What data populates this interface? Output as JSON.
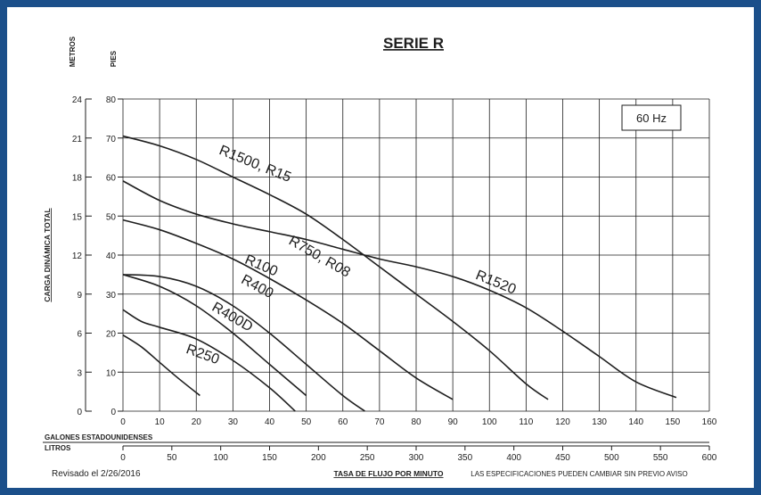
{
  "chart_data": {
    "type": "line",
    "title": "SERIE R",
    "frequency_badge": "60 Hz",
    "xlabel": "TASA DE FLUJO POR MINUTO",
    "ylabel": "CARGA DINÁMICA TOTAL",
    "x_axis_gallons": {
      "label": "GALONES ESTADOUNIDENSES",
      "range": [
        0,
        160
      ],
      "ticks": [
        0,
        10,
        20,
        30,
        40,
        50,
        60,
        70,
        80,
        90,
        100,
        110,
        120,
        130,
        140,
        150,
        160
      ]
    },
    "x_axis_liters": {
      "label": "LITROS",
      "range": [
        0,
        600
      ],
      "ticks": [
        0,
        50,
        100,
        150,
        200,
        250,
        300,
        350,
        400,
        450,
        500,
        550,
        600
      ]
    },
    "y_axis_feet": {
      "label": "PIES",
      "range": [
        0,
        80
      ],
      "ticks": [
        0,
        10,
        20,
        30,
        40,
        50,
        60,
        70,
        80
      ]
    },
    "y_axis_meters": {
      "label": "METROS",
      "range": [
        0,
        24
      ],
      "ticks": [
        0,
        3,
        6,
        9,
        12,
        15,
        18,
        21,
        24
      ]
    },
    "grid": true,
    "series": [
      {
        "name": "R100",
        "x": [
          0,
          5,
          10,
          15,
          21
        ],
        "y": [
          19.5,
          16.5,
          12.5,
          8.5,
          4
        ]
      },
      {
        "name": "R250",
        "x": [
          0,
          5,
          10,
          20,
          30,
          40,
          47
        ],
        "y": [
          26,
          23,
          21.5,
          18.5,
          13,
          6,
          0
        ]
      },
      {
        "name": "R400D",
        "x": [
          0,
          10,
          20,
          30,
          40,
          50
        ],
        "y": [
          35,
          32,
          27,
          20,
          12,
          4
        ]
      },
      {
        "name": "R400",
        "x": [
          0,
          10,
          20,
          30,
          40,
          50,
          60,
          66
        ],
        "y": [
          35,
          34.5,
          32,
          27,
          20,
          12,
          4,
          0
        ]
      },
      {
        "name": "R750, R08",
        "x": [
          0,
          10,
          20,
          30,
          40,
          50,
          60,
          70,
          80,
          90
        ],
        "y": [
          49,
          46.5,
          43,
          39,
          34,
          28.5,
          22.5,
          15.5,
          8.5,
          3
        ]
      },
      {
        "name": "R1500, R15",
        "x": [
          0,
          10,
          20,
          30,
          40,
          50,
          60,
          70,
          80,
          90,
          100,
          110,
          116
        ],
        "y": [
          70.5,
          68,
          64.5,
          60,
          55.5,
          50.5,
          44,
          37,
          30,
          23,
          15.5,
          7,
          3
        ]
      },
      {
        "name": "R1520",
        "x": [
          0,
          10,
          20,
          30,
          40,
          50,
          60,
          70,
          80,
          90,
          100,
          110,
          120,
          130,
          140,
          151
        ],
        "y": [
          59,
          54,
          50.5,
          48,
          46,
          44,
          41.5,
          39,
          37,
          34.5,
          31,
          26.5,
          20.5,
          14,
          7.5,
          3.5
        ]
      }
    ]
  },
  "footer": {
    "revised": "Revisado el 2/26/2016",
    "disclaimer": "LAS ESPECIFICACIONES PUEDEN CAMBIAR SIN PREVIO AVISO"
  }
}
